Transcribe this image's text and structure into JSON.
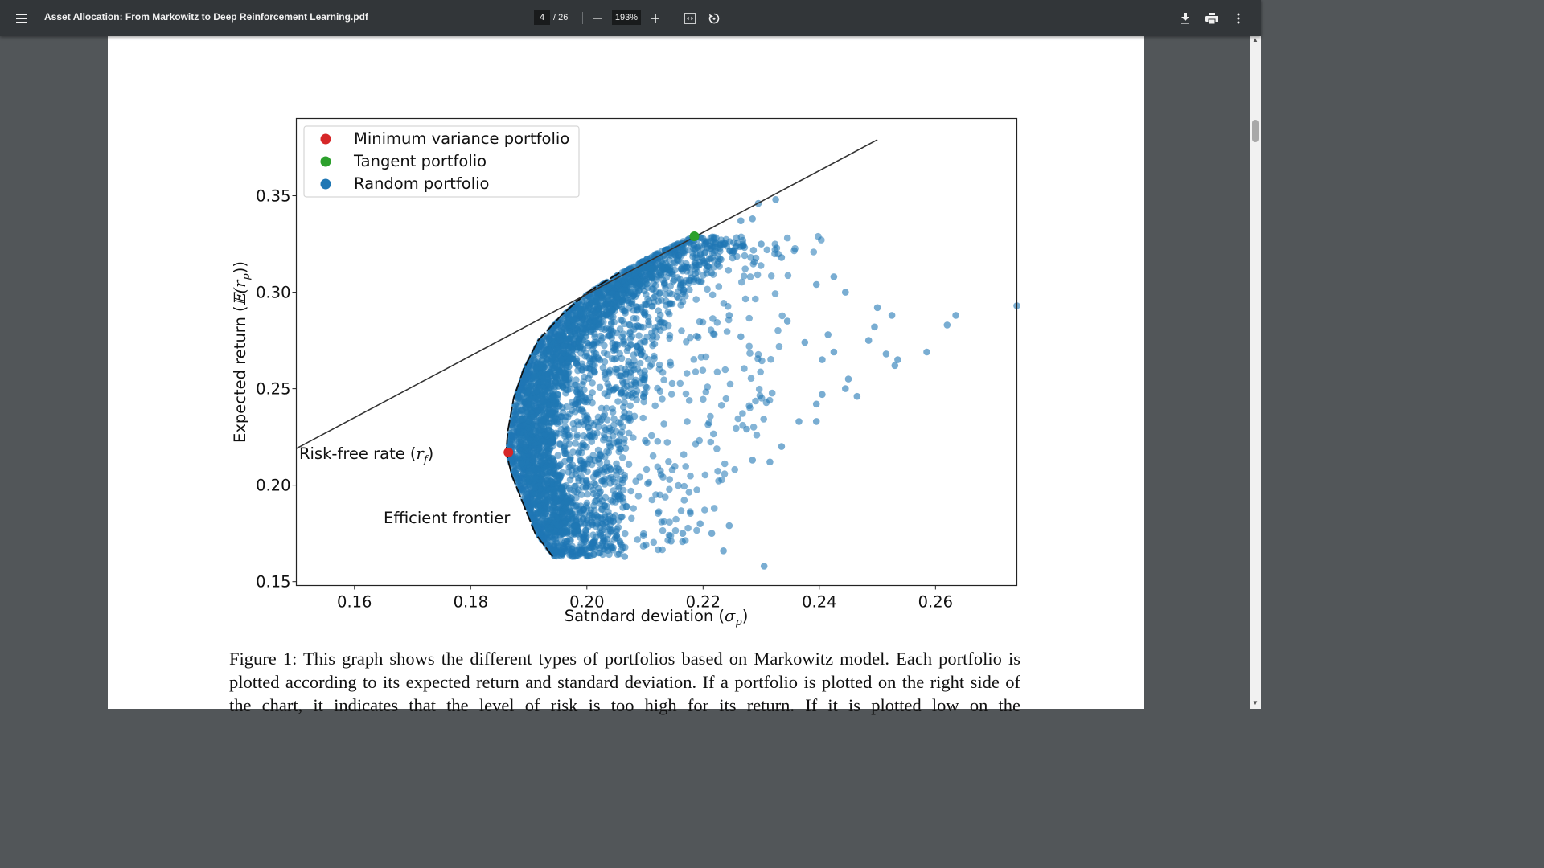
{
  "toolbar": {
    "title": "Asset Allocation: From Markowitz to Deep Reinforcement Learning.pdf",
    "page_current": "4",
    "page_total": "/ 26",
    "zoom": "193%",
    "icons": [
      "menu-icon",
      "zoom-out-icon",
      "zoom-in-icon",
      "fit-page-icon",
      "rotate-icon",
      "download-icon",
      "print-icon",
      "more-vert-icon"
    ]
  },
  "colors": {
    "toolbar": "#323639",
    "background": "#525659",
    "min_variance": "#d62728",
    "tangent": "#2ca02c",
    "random": "#1f77b4"
  },
  "chart_data": {
    "type": "scatter",
    "xlabel": "Satndard deviation (σp)",
    "ylabel": "Expected return (𝔼(rp))",
    "xlim": [
      0.15,
      0.274
    ],
    "ylim": [
      0.148,
      0.39
    ],
    "xticks": [
      "0.16",
      "0.18",
      "0.20",
      "0.22",
      "0.24",
      "0.26"
    ],
    "yticks": [
      "0.15",
      "0.20",
      "0.25",
      "0.30",
      "0.35"
    ],
    "legend_position": "top-left",
    "grid": false,
    "legend": [
      {
        "label": "Minimum variance portfolio",
        "color": "#d62728"
      },
      {
        "label": "Tangent portfolio",
        "color": "#2ca02c"
      },
      {
        "label": "Random portfolio",
        "color": "#1f77b4"
      }
    ],
    "series": [
      {
        "name": "Minimum variance portfolio",
        "points": [
          [
            0.1865,
            0.217
          ]
        ]
      },
      {
        "name": "Tangent portfolio",
        "points": [
          [
            0.2185,
            0.329
          ]
        ]
      },
      {
        "name": "Random portfolio",
        "approx_count": 10000,
        "frontier_left_edge": [
          [
            0.1945,
            0.163
          ],
          [
            0.1915,
            0.175
          ],
          [
            0.1895,
            0.19
          ],
          [
            0.1875,
            0.205
          ],
          [
            0.1865,
            0.217
          ],
          [
            0.1868,
            0.228
          ],
          [
            0.1878,
            0.245
          ],
          [
            0.1895,
            0.26
          ],
          [
            0.192,
            0.275
          ],
          [
            0.196,
            0.288
          ],
          [
            0.2005,
            0.3
          ],
          [
            0.206,
            0.31
          ],
          [
            0.212,
            0.32
          ],
          [
            0.2185,
            0.329
          ]
        ],
        "outliers": [
          [
            0.2325,
            0.348
          ],
          [
            0.2295,
            0.346
          ],
          [
            0.2265,
            0.337
          ],
          [
            0.2285,
            0.338
          ],
          [
            0.23,
            0.325
          ],
          [
            0.2335,
            0.318
          ],
          [
            0.2395,
            0.304
          ],
          [
            0.2425,
            0.308
          ],
          [
            0.2445,
            0.3
          ],
          [
            0.25,
            0.292
          ],
          [
            0.2525,
            0.288
          ],
          [
            0.2495,
            0.282
          ],
          [
            0.262,
            0.283
          ],
          [
            0.2635,
            0.288
          ],
          [
            0.274,
            0.293
          ],
          [
            0.2585,
            0.269
          ],
          [
            0.253,
            0.262
          ],
          [
            0.2535,
            0.265
          ],
          [
            0.2515,
            0.268
          ],
          [
            0.245,
            0.255
          ],
          [
            0.2445,
            0.25
          ],
          [
            0.2465,
            0.246
          ],
          [
            0.2405,
            0.247
          ],
          [
            0.2395,
            0.242
          ],
          [
            0.2305,
            0.158
          ],
          [
            0.2235,
            0.166
          ],
          [
            0.2215,
            0.175
          ],
          [
            0.2245,
            0.179
          ],
          [
            0.2195,
            0.18
          ],
          [
            0.2165,
            0.175
          ],
          [
            0.2145,
            0.171
          ],
          [
            0.2065,
            0.163
          ],
          [
            0.2315,
            0.212
          ],
          [
            0.2335,
            0.22
          ],
          [
            0.2285,
            0.213
          ],
          [
            0.2275,
            0.229
          ],
          [
            0.2365,
            0.233
          ],
          [
            0.2395,
            0.233
          ],
          [
            0.2425,
            0.269
          ],
          [
            0.2405,
            0.265
          ],
          [
            0.2415,
            0.278
          ],
          [
            0.2485,
            0.275
          ],
          [
            0.2375,
            0.274
          ],
          [
            0.2345,
            0.285
          ],
          [
            0.2265,
            0.277
          ],
          [
            0.2245,
            0.288
          ]
        ]
      }
    ],
    "annotations": [
      {
        "text": "Risk-free rate (rf)",
        "x": 0.1505,
        "y": 0.214
      },
      {
        "text": "Efficient frontier",
        "x": 0.165,
        "y": 0.181
      }
    ],
    "lines": [
      {
        "name": "capital-market-line",
        "points": [
          [
            0.15,
            0.219
          ],
          [
            0.25,
            0.379
          ]
        ]
      }
    ]
  },
  "figure": {
    "legend_min_variance": "Minimum variance portfolio",
    "legend_tangent": "Tangent portfolio",
    "legend_random": "Random portfolio",
    "risk_free_label": "Risk-free rate (",
    "risk_free_sym": "r",
    "risk_free_sub": "f",
    "risk_free_close": ")",
    "frontier_label": "Efficient frontier",
    "xlabel_text": "Satndard deviation (",
    "xlabel_sym": "σ",
    "xlabel_sub": "p",
    "xlabel_close": ")",
    "ylabel_text": "Expected return (",
    "ylabel_sym": "𝔼(r",
    "ylabel_sub": "p",
    "ylabel_close": "))"
  },
  "caption": "Figure 1: This graph shows the different types of portfolios based on Markowitz model. Each portfolio is plotted according to its expected return and standard deviation. If a portfolio is plotted on the right side of the chart, it indicates that the level of risk is too high for its return. If it is plotted low on the"
}
